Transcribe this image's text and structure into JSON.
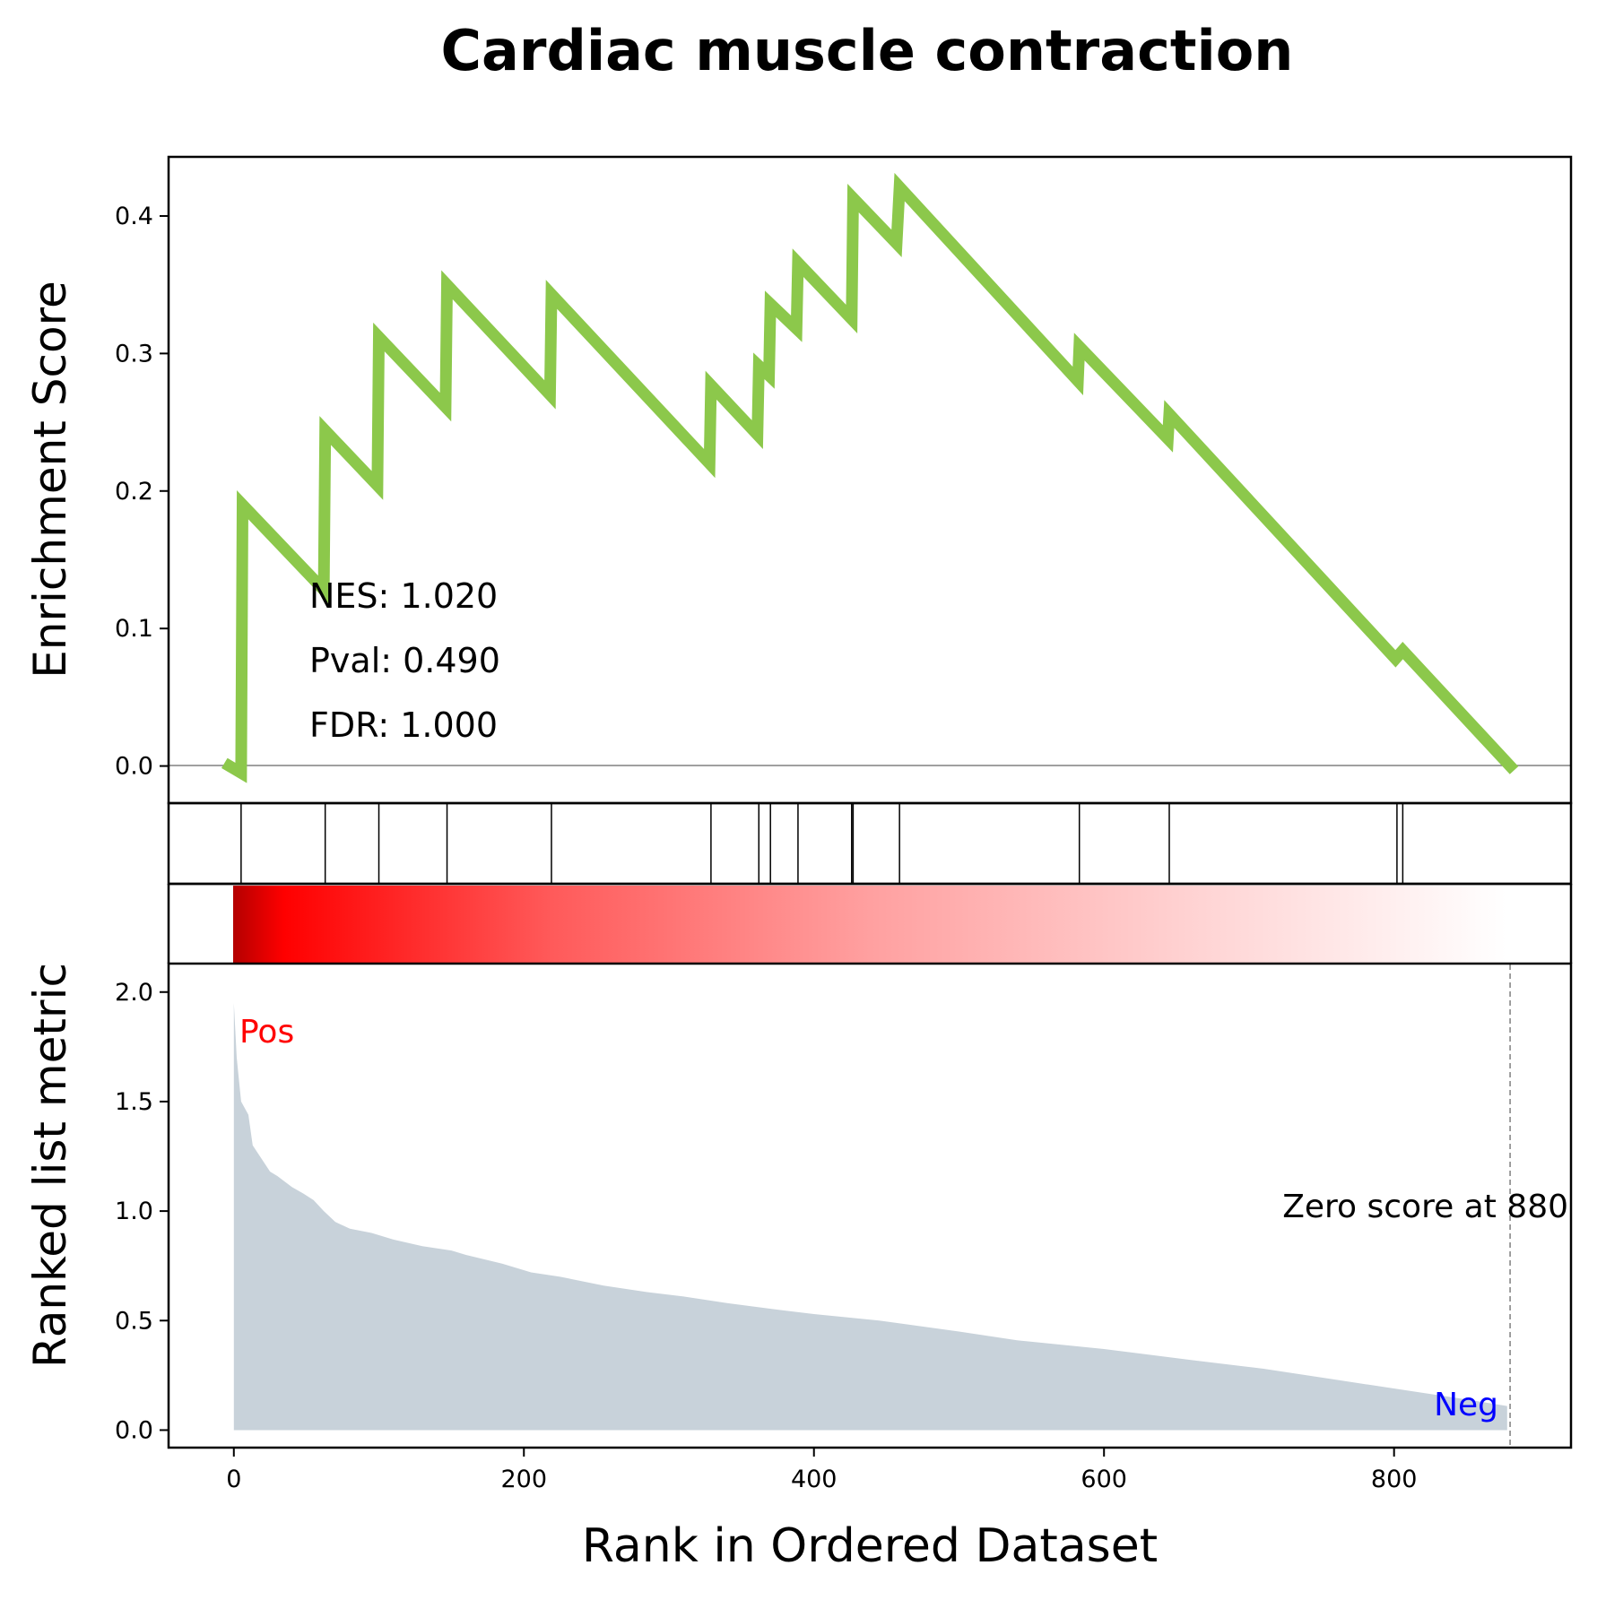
{
  "chart_data": {
    "type": "line",
    "title": "Cardiac muscle contraction",
    "xlabel": "Rank in Ordered Dataset",
    "xlim": [
      -45,
      922
    ],
    "x_ticks": [
      0,
      200,
      400,
      600,
      800
    ],
    "colors": {
      "es_line": "#8cc84b",
      "ranked_fill": "#c8d2da",
      "pos_label": "#ff0000",
      "neg_label": "#0000ff",
      "heatmap_dark": "#b40000",
      "heatmap_mid": "#ff0000"
    },
    "enrichment_panel": {
      "ylabel": "Enrichment Score",
      "ylim": [
        -0.027,
        0.443
      ],
      "y_ticks": [
        "0.0",
        "0.1",
        "0.2",
        "0.3",
        "0.4"
      ],
      "stats": [
        "NES: 1.020",
        "Pval: 0.490",
        "FDR: 1.000"
      ],
      "points": [
        [
          -3,
          0.0
        ],
        [
          5,
          -0.005
        ],
        [
          6,
          0.19
        ],
        [
          62,
          0.128
        ],
        [
          63,
          0.244
        ],
        [
          99,
          0.204
        ],
        [
          100,
          0.312
        ],
        [
          146,
          0.261
        ],
        [
          147,
          0.35
        ],
        [
          218,
          0.27
        ],
        [
          219,
          0.343
        ],
        [
          328,
          0.22
        ],
        [
          329,
          0.277
        ],
        [
          361,
          0.241
        ],
        [
          362,
          0.291
        ],
        [
          369,
          0.284
        ],
        [
          370,
          0.336
        ],
        [
          388,
          0.318
        ],
        [
          389,
          0.366
        ],
        [
          426,
          0.325
        ],
        [
          427,
          0.413
        ],
        [
          457,
          0.38
        ],
        [
          459,
          0.421
        ],
        [
          582,
          0.28
        ],
        [
          583,
          0.305
        ],
        [
          644,
          0.238
        ],
        [
          645,
          0.256
        ],
        [
          801,
          0.078
        ],
        [
          806,
          0.084
        ],
        [
          880,
          0.0
        ]
      ]
    },
    "hits_panel": {
      "hit_ranks": [
        5,
        63,
        100,
        147,
        219,
        329,
        362,
        370,
        389,
        426,
        427,
        459,
        583,
        645,
        802,
        806
      ]
    },
    "ranked_panel": {
      "ylabel": "Ranked list metric",
      "ylim": [
        -0.08,
        2.13
      ],
      "y_ticks": [
        "0.0",
        "0.5",
        "1.0",
        "1.5",
        "2.0"
      ],
      "pos_label": "Pos",
      "neg_label": "Neg",
      "zero_label": "Zero score at 880",
      "zero_score_at": 880,
      "curve": [
        [
          0,
          1.95
        ],
        [
          2,
          1.7
        ],
        [
          5,
          1.5
        ],
        [
          10,
          1.44
        ],
        [
          13,
          1.3
        ],
        [
          20,
          1.23
        ],
        [
          25,
          1.18
        ],
        [
          30,
          1.16
        ],
        [
          40,
          1.11
        ],
        [
          48,
          1.08
        ],
        [
          55,
          1.05
        ],
        [
          62,
          1.0
        ],
        [
          70,
          0.95
        ],
        [
          80,
          0.92
        ],
        [
          95,
          0.9
        ],
        [
          110,
          0.87
        ],
        [
          130,
          0.84
        ],
        [
          150,
          0.82
        ],
        [
          160,
          0.8
        ],
        [
          185,
          0.76
        ],
        [
          205,
          0.72
        ],
        [
          225,
          0.7
        ],
        [
          255,
          0.66
        ],
        [
          285,
          0.63
        ],
        [
          310,
          0.61
        ],
        [
          340,
          0.58
        ],
        [
          375,
          0.55
        ],
        [
          400,
          0.53
        ],
        [
          445,
          0.5
        ],
        [
          500,
          0.45
        ],
        [
          540,
          0.41
        ],
        [
          600,
          0.37
        ],
        [
          660,
          0.32
        ],
        [
          710,
          0.28
        ],
        [
          760,
          0.23
        ],
        [
          810,
          0.18
        ],
        [
          850,
          0.14
        ],
        [
          878,
          0.11
        ]
      ]
    }
  }
}
